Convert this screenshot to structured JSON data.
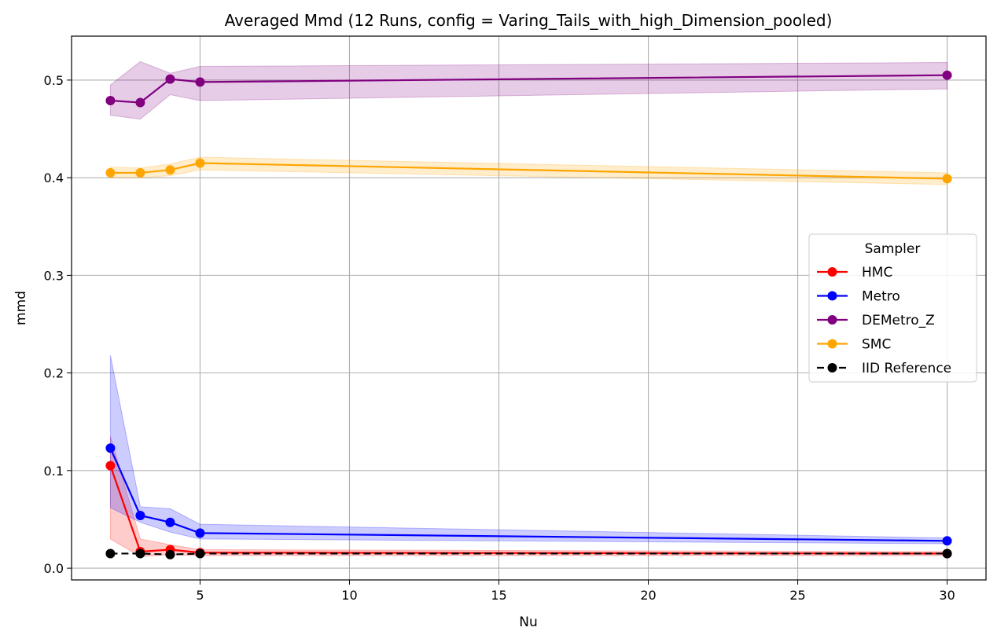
{
  "chart_data": {
    "type": "line",
    "title": "Averaged Mmd (12 Runs, config = Varing_Tails_with_high_Dimension_pooled)",
    "xlabel": "Nu",
    "ylabel": "mmd",
    "xlim": [
      0.7,
      31.3
    ],
    "ylim": [
      -0.012,
      0.545
    ],
    "xticks": [
      5,
      10,
      15,
      20,
      25,
      30
    ],
    "yticks": [
      0.0,
      0.1,
      0.2,
      0.3,
      0.4,
      0.5
    ],
    "ytick_labels": [
      "0.0",
      "0.1",
      "0.2",
      "0.3",
      "0.4",
      "0.5"
    ],
    "grid": true,
    "legend": {
      "title": "Sampler",
      "placement": "center-right"
    },
    "x": [
      2,
      3,
      4,
      5,
      30
    ],
    "series": [
      {
        "name": "HMC",
        "color": "#ff0000",
        "dashed": false,
        "values": [
          0.105,
          0.017,
          0.019,
          0.016,
          0.015
        ],
        "lower": [
          0.03,
          0.012,
          0.014,
          0.013,
          0.013
        ],
        "upper": [
          0.135,
          0.03,
          0.024,
          0.019,
          0.017
        ]
      },
      {
        "name": "Metro",
        "color": "#0000ff",
        "dashed": false,
        "values": [
          0.123,
          0.054,
          0.047,
          0.036,
          0.028
        ],
        "lower": [
          0.062,
          0.047,
          0.037,
          0.03,
          0.025
        ],
        "upper": [
          0.218,
          0.063,
          0.061,
          0.045,
          0.031
        ]
      },
      {
        "name": "DEMetro_Z",
        "color": "#800080",
        "dashed": false,
        "values": [
          0.479,
          0.477,
          0.501,
          0.498,
          0.505
        ],
        "lower": [
          0.464,
          0.46,
          0.485,
          0.479,
          0.491
        ],
        "upper": [
          0.495,
          0.519,
          0.507,
          0.514,
          0.518
        ]
      },
      {
        "name": "SMC",
        "color": "#ffa500",
        "dashed": false,
        "values": [
          0.405,
          0.405,
          0.408,
          0.415,
          0.399
        ],
        "lower": [
          0.4,
          0.4,
          0.402,
          0.408,
          0.393
        ],
        "upper": [
          0.411,
          0.41,
          0.414,
          0.421,
          0.405
        ]
      },
      {
        "name": "IID Reference",
        "color": "#000000",
        "dashed": true,
        "values": [
          0.015,
          0.015,
          0.014,
          0.015,
          0.015
        ]
      }
    ]
  }
}
